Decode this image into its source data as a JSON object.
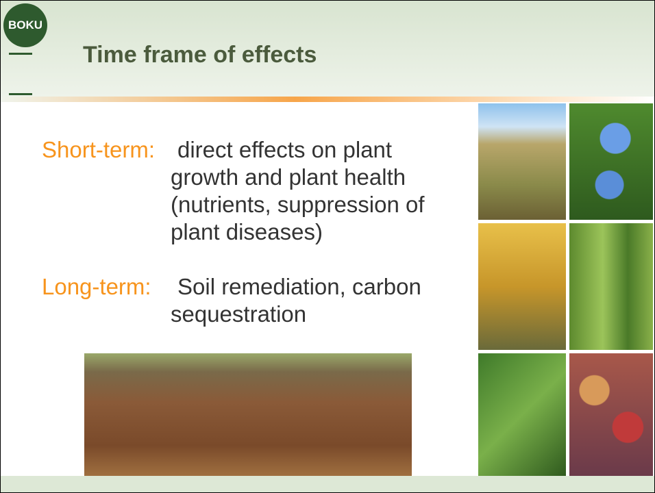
{
  "header": {
    "logo": "BOKU",
    "title": "Time frame of effects"
  },
  "items": [
    {
      "label": "Short-term:",
      "lines": [
        "direct effects on plant",
        "growth and plant health",
        "(nutrients, suppression of",
        "plant diseases)"
      ]
    },
    {
      "label": "Long-term:",
      "lines": [
        "Soil remediation, carbon",
        "sequestration"
      ]
    }
  ]
}
